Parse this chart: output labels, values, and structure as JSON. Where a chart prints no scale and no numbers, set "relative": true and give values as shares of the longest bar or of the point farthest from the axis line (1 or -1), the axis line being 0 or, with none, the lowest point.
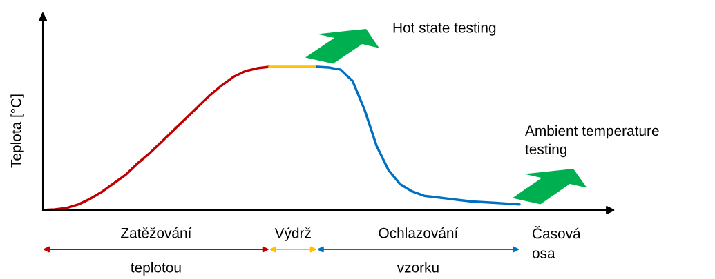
{
  "chart_data": {
    "type": "line",
    "relative": true,
    "ylabel": "Teplota [°C]",
    "xlabel": "Časová\nosa",
    "categories": [
      null,
      null,
      null,
      null,
      null,
      null,
      null,
      null,
      null,
      null,
      null,
      null,
      null,
      null,
      null,
      null,
      null,
      null,
      null,
      null,
      null,
      null,
      null,
      null,
      null,
      null,
      null,
      null,
      null,
      null,
      null,
      null,
      null,
      null,
      null,
      null,
      null,
      null,
      null,
      null,
      null
    ],
    "series": [
      {
        "color": "#c00000",
        "values": [
          0,
          0.005,
          0.015,
          0.04,
          0.08,
          0.13,
          0.19,
          0.25,
          0.33,
          0.4,
          0.48,
          0.56,
          0.64,
          0.72,
          0.8,
          0.87,
          0.93,
          0.97,
          0.99,
          1,
          null,
          null,
          null,
          null,
          null,
          null,
          null,
          null,
          null,
          null,
          null,
          null,
          null,
          null,
          null,
          null,
          null,
          null,
          null,
          null,
          null
        ]
      },
      {
        "color": "#ffc000",
        "values": [
          null,
          null,
          null,
          null,
          null,
          null,
          null,
          null,
          null,
          null,
          null,
          null,
          null,
          null,
          null,
          null,
          null,
          null,
          null,
          1,
          1,
          1,
          1,
          1,
          null,
          null,
          null,
          null,
          null,
          null,
          null,
          null,
          null,
          null,
          null,
          null,
          null,
          null,
          null,
          null,
          null
        ]
      },
      {
        "color": "#0070c0",
        "values": [
          null,
          null,
          null,
          null,
          null,
          null,
          null,
          null,
          null,
          null,
          null,
          null,
          null,
          null,
          null,
          null,
          null,
          null,
          null,
          null,
          null,
          null,
          null,
          1,
          0.995,
          0.98,
          0.9,
          0.7,
          0.45,
          0.28,
          0.18,
          0.13,
          0.1,
          0.09,
          0.08,
          0.07,
          0.06,
          0.055,
          0.05,
          0.045,
          0.04
        ]
      }
    ],
    "annotations": [
      "Hot state testing",
      "Ambient temperature\ntesting",
      "Zatěžování",
      "teplotou",
      "Výdrž",
      "Ochlazování",
      "vzorku"
    ],
    "legend": false,
    "marker": "none",
    "line_style": "solid"
  }
}
